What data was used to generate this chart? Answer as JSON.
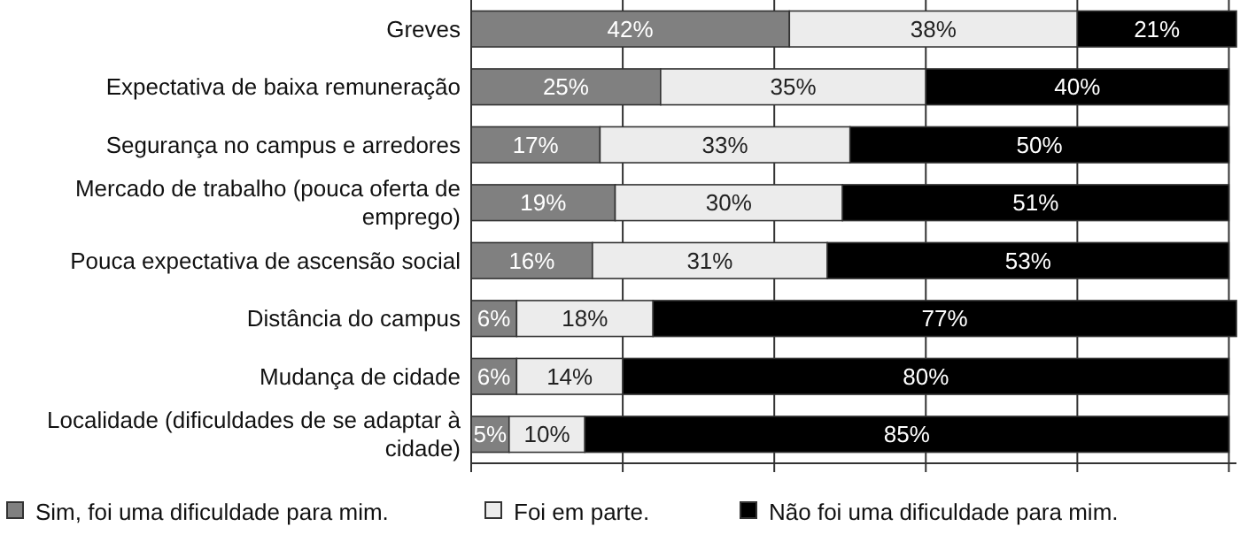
{
  "chart_data": {
    "type": "bar",
    "orientation": "horizontal",
    "stacked": true,
    "categories": [
      "Greves",
      "Expectativa de baixa remuneração",
      "Segurança no campus e arredores",
      "Mercado de trabalho (pouca oferta de emprego)",
      "Pouca expectativa de ascensão social",
      "Distância do campus",
      "Mudança de cidade",
      "Localidade (dificuldades de se adaptar à cidade)"
    ],
    "series": [
      {
        "name": "Sim, foi uma dificuldade para mim.",
        "color": "#808080",
        "values": [
          42,
          25,
          17,
          19,
          16,
          6,
          6,
          5
        ],
        "value_labels": [
          "42%",
          "25%",
          "17%",
          "19%",
          "16%",
          "6%",
          "6%",
          "5%"
        ]
      },
      {
        "name": "Foi em parte.",
        "color": "#ececec",
        "values": [
          38,
          35,
          33,
          30,
          31,
          18,
          14,
          10
        ],
        "value_labels": [
          "38%",
          "35%",
          "33%",
          "30%",
          "31%",
          "18%",
          "14%",
          "10%"
        ]
      },
      {
        "name": "Não foi uma dificuldade para mim.",
        "color": "#000000",
        "values": [
          21,
          40,
          50,
          51,
          53,
          77,
          80,
          85
        ],
        "value_labels": [
          "21%",
          "40%",
          "50%",
          "51%",
          "53%",
          "77%",
          "80%",
          "85%"
        ]
      }
    ],
    "xlim": [
      0,
      101
    ],
    "xticks": [
      {
        "value": 0,
        "label": null
      },
      {
        "value": 20,
        "label": null
      },
      {
        "value": 40,
        "label": null
      },
      {
        "value": 60,
        "label": null
      },
      {
        "value": 80,
        "label": null
      },
      {
        "value": 100,
        "label": null
      }
    ],
    "tick_labels": "y",
    "grid": "x",
    "legend": "bottom"
  }
}
